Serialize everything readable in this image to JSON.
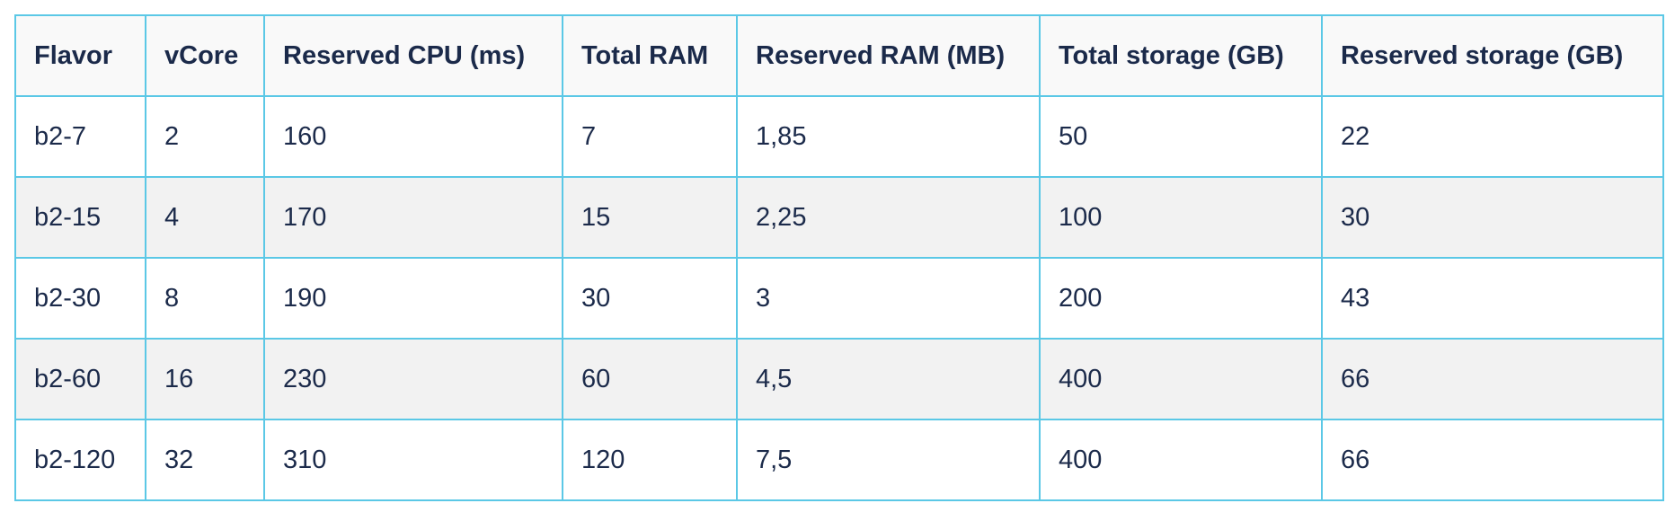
{
  "table": {
    "headers": [
      "Flavor",
      "vCore",
      "Reserved CPU (ms)",
      "Total RAM",
      "Reserved RAM (MB)",
      "Total storage (GB)",
      "Reserved storage (GB)"
    ],
    "rows": [
      [
        "b2-7",
        "2",
        "160",
        "7",
        "1,85",
        "50",
        "22"
      ],
      [
        "b2-15",
        "4",
        "170",
        "15",
        "2,25",
        "100",
        "30"
      ],
      [
        "b2-30",
        "8",
        "190",
        "30",
        "3",
        "200",
        "43"
      ],
      [
        "b2-60",
        "16",
        "230",
        "60",
        "4,5",
        "400",
        "66"
      ],
      [
        "b2-120",
        "32",
        "310",
        "120",
        "7,5",
        "400",
        "66"
      ]
    ]
  },
  "colors": {
    "border": "#5bc8e6",
    "header_background": "#f9f9f9",
    "stripe_background": "#f2f2f2",
    "text": "#1b2a4a"
  }
}
